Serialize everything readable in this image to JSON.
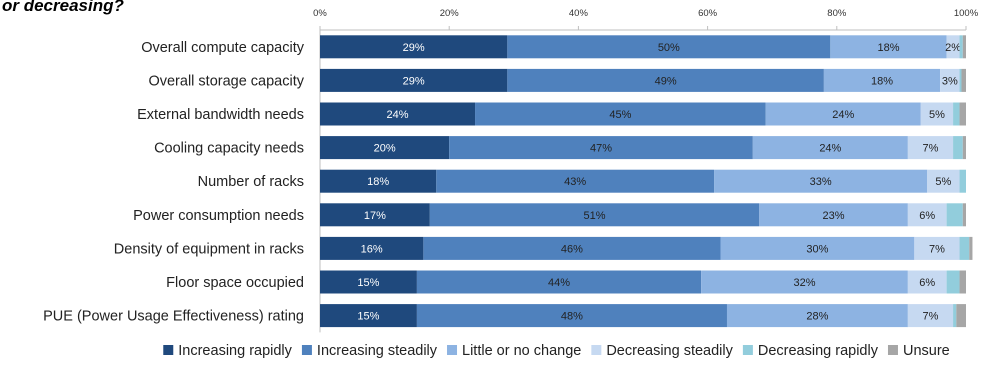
{
  "title": "or decreasing?",
  "chart_data": {
    "type": "bar",
    "orientation": "horizontal",
    "stacked": true,
    "percent_scale": true,
    "title": "or decreasing?",
    "xlim": [
      0,
      100
    ],
    "x_ticks": [
      "0%",
      "20%",
      "40%",
      "60%",
      "80%",
      "100%"
    ],
    "legend_position": "bottom",
    "categories": [
      "Overall compute capacity",
      "Overall storage capacity",
      "External bandwidth needs",
      "Cooling capacity needs",
      "Number of racks",
      "Power consumption needs",
      "Density of equipment in racks",
      "Floor space occupied",
      "PUE (Power Usage Effectiveness) rating"
    ],
    "series": [
      {
        "name": "Increasing rapidly",
        "color": "#1f497d",
        "values": [
          29,
          29,
          24,
          20,
          18,
          17,
          16,
          15,
          15
        ],
        "labels": [
          "29%",
          "29%",
          "24%",
          "20%",
          "18%",
          "17%",
          "16%",
          "15%",
          "15%"
        ]
      },
      {
        "name": "Increasing steadily",
        "color": "#4f81bd",
        "values": [
          50,
          49,
          45,
          47,
          43,
          51,
          46,
          44,
          48
        ],
        "labels": [
          "50%",
          "49%",
          "45%",
          "47%",
          "43%",
          "51%",
          "46%",
          "44%",
          "48%"
        ]
      },
      {
        "name": "Little or no change",
        "color": "#8db3e2",
        "values": [
          18,
          18,
          24,
          24,
          33,
          23,
          30,
          32,
          28
        ],
        "labels": [
          "18%",
          "18%",
          "24%",
          "24%",
          "33%",
          "23%",
          "30%",
          "32%",
          "28%"
        ]
      },
      {
        "name": "Decreasing steadily",
        "color": "#c6d9f1",
        "values": [
          2,
          3,
          5,
          7,
          5,
          6,
          7,
          6,
          7
        ],
        "labels": [
          "2%",
          "3%",
          "5%",
          "7%",
          "5%",
          "6%",
          "7%",
          "6%",
          "7%"
        ]
      },
      {
        "name": "Decreasing rapidly",
        "color": "#92cddc",
        "values": [
          0.5,
          0.3,
          1,
          1.5,
          1,
          2.5,
          1.5,
          2,
          0.5
        ],
        "labels": [
          "",
          "",
          "",
          "",
          "",
          "",
          "",
          "",
          ""
        ]
      },
      {
        "name": "Unsure",
        "color": "#a6a6a6",
        "values": [
          0.5,
          0.7,
          1,
          0.5,
          0,
          0.5,
          0.5,
          1,
          1.5
        ],
        "labels": [
          "",
          "",
          "",
          "",
          "",
          "",
          "",
          "",
          ""
        ]
      }
    ]
  }
}
